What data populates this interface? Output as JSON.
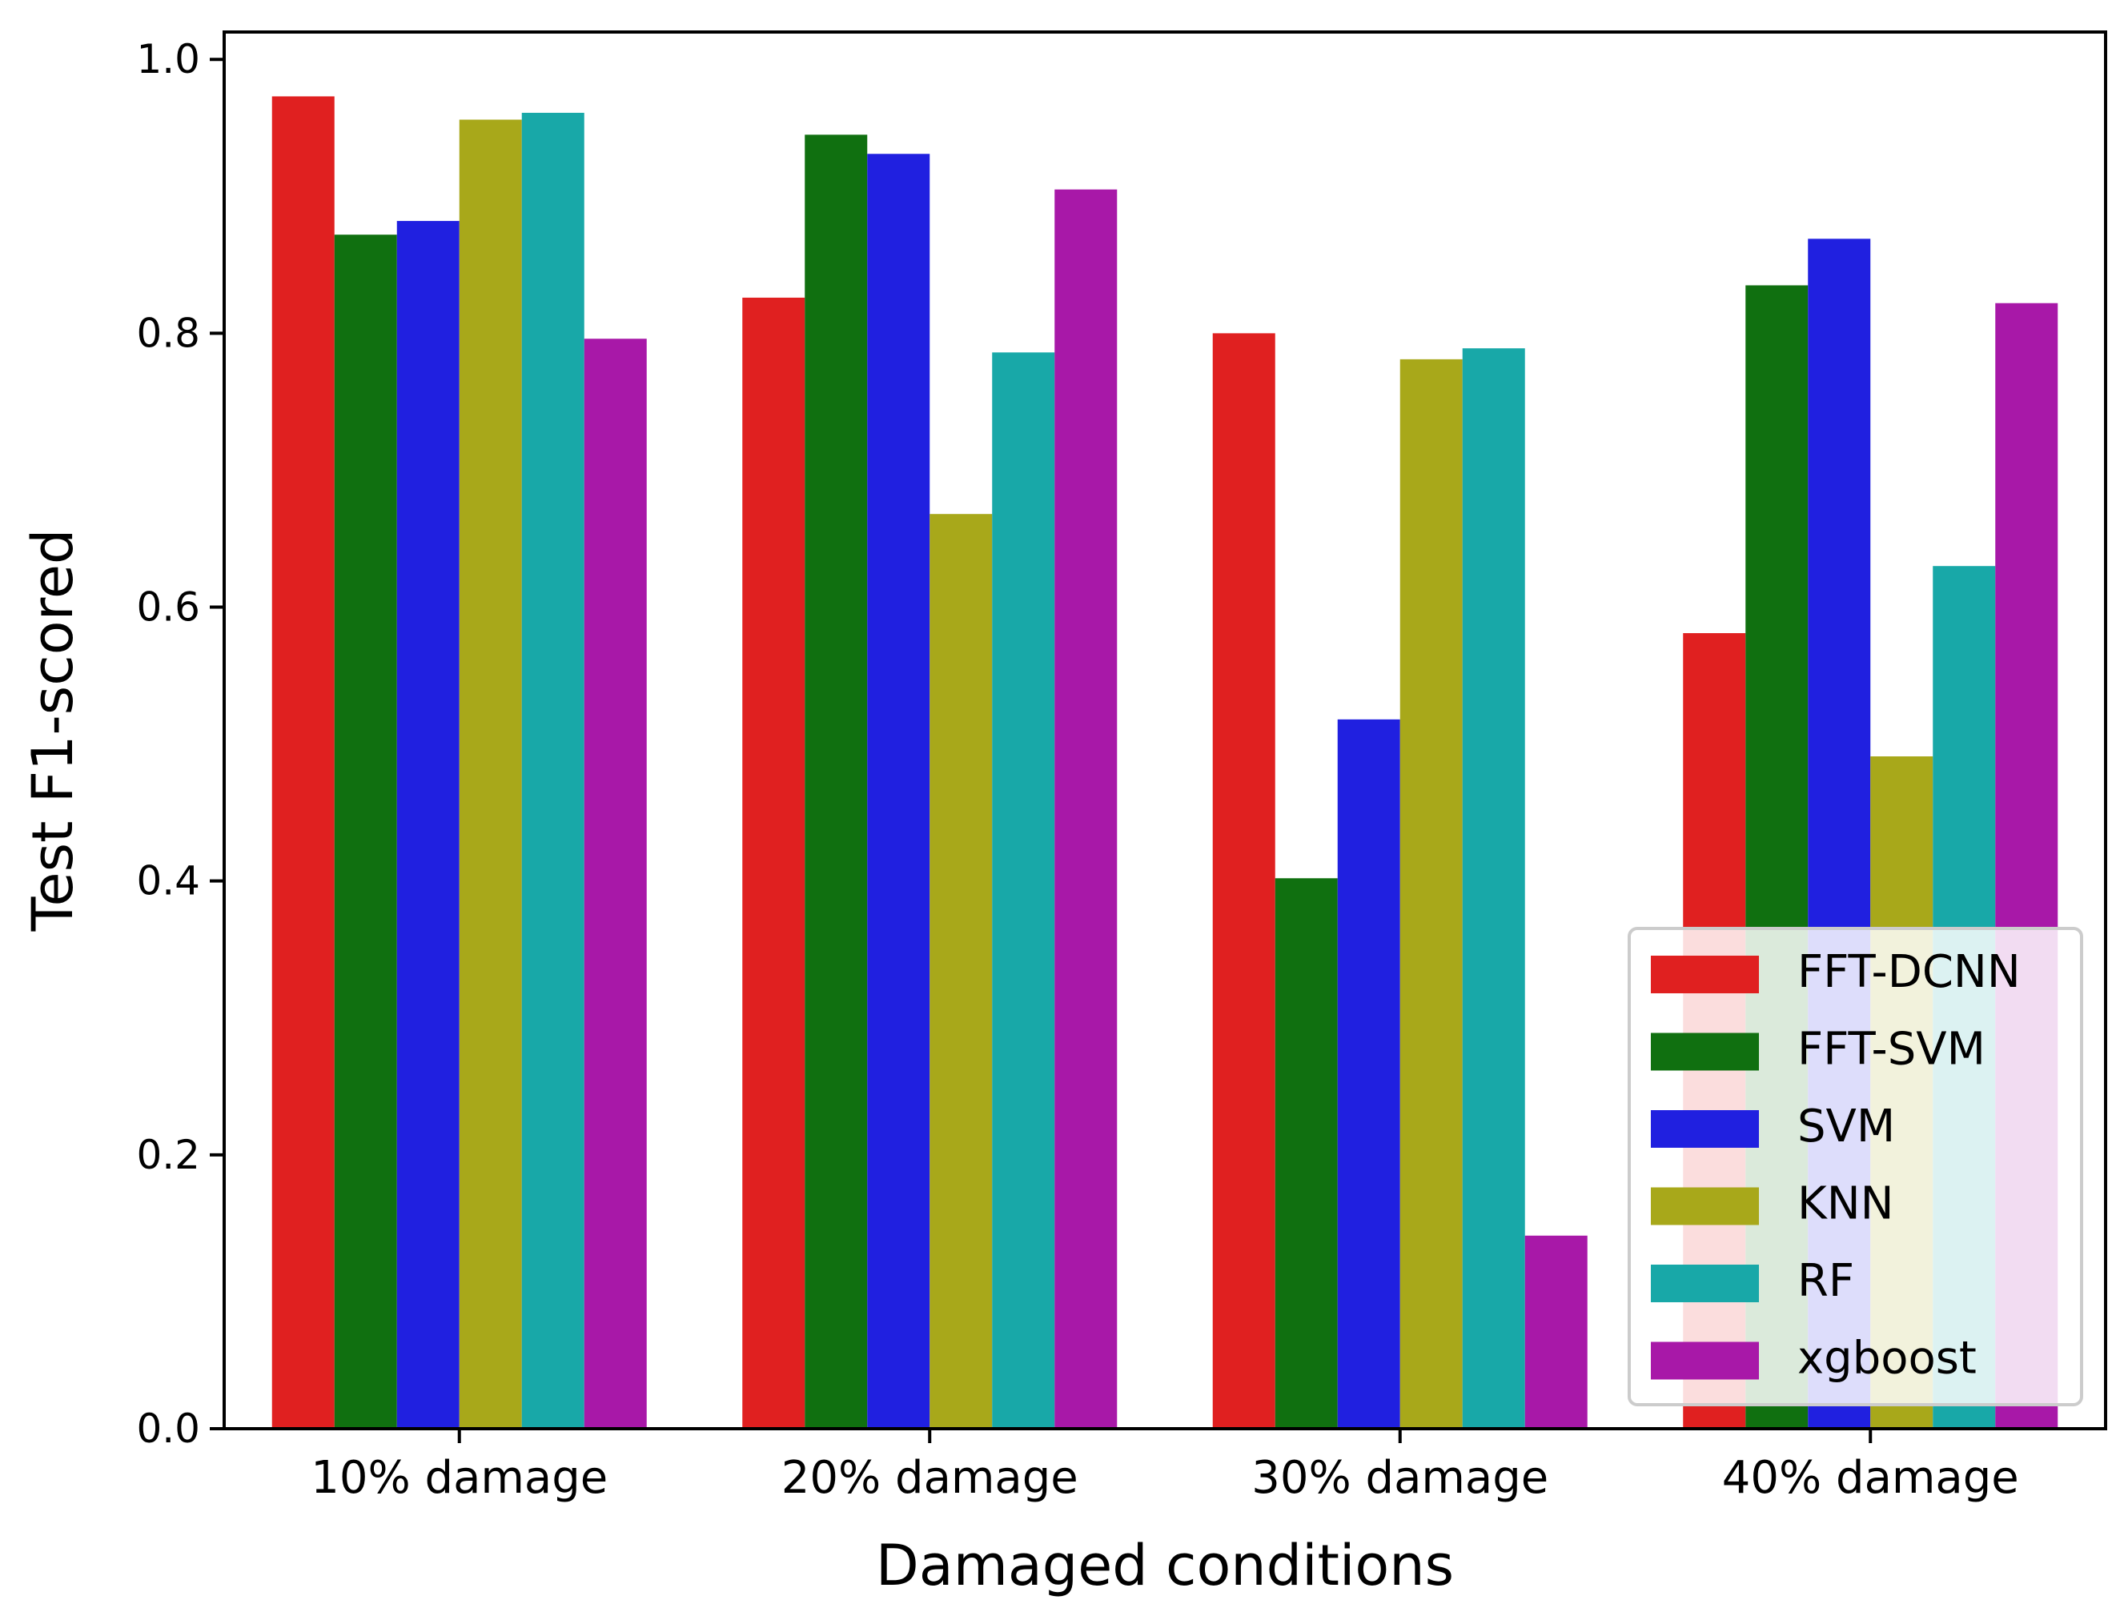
{
  "chart_data": {
    "type": "bar",
    "title": "",
    "xlabel": "Damaged conditions",
    "ylabel": "Test F1-scored",
    "categories": [
      "10% damage",
      "20% damage",
      "30% damage",
      "40% damage"
    ],
    "ylim": [
      0.0,
      1.02
    ],
    "yticks": [
      "0.0",
      "0.2",
      "0.4",
      "0.6",
      "0.8",
      "1.0"
    ],
    "grid": false,
    "legend_position": "lower-right",
    "series": [
      {
        "name": "FFT-DCNN",
        "color": "#e02020",
        "values": [
          0.973,
          0.826,
          0.8,
          0.581
        ]
      },
      {
        "name": "FFT-SVM",
        "color": "#107010",
        "values": [
          0.872,
          0.945,
          0.402,
          0.835
        ]
      },
      {
        "name": "SVM",
        "color": "#2020e0",
        "values": [
          0.882,
          0.931,
          0.518,
          0.869
        ]
      },
      {
        "name": "KNN",
        "color": "#a8a81a",
        "values": [
          0.956,
          0.668,
          0.781,
          0.491
        ]
      },
      {
        "name": "RF",
        "color": "#18a8a8",
        "values": [
          0.961,
          0.786,
          0.789,
          0.63
        ]
      },
      {
        "name": "xgboost",
        "color": "#a818a8",
        "values": [
          0.796,
          0.905,
          0.141,
          0.822
        ]
      }
    ]
  }
}
